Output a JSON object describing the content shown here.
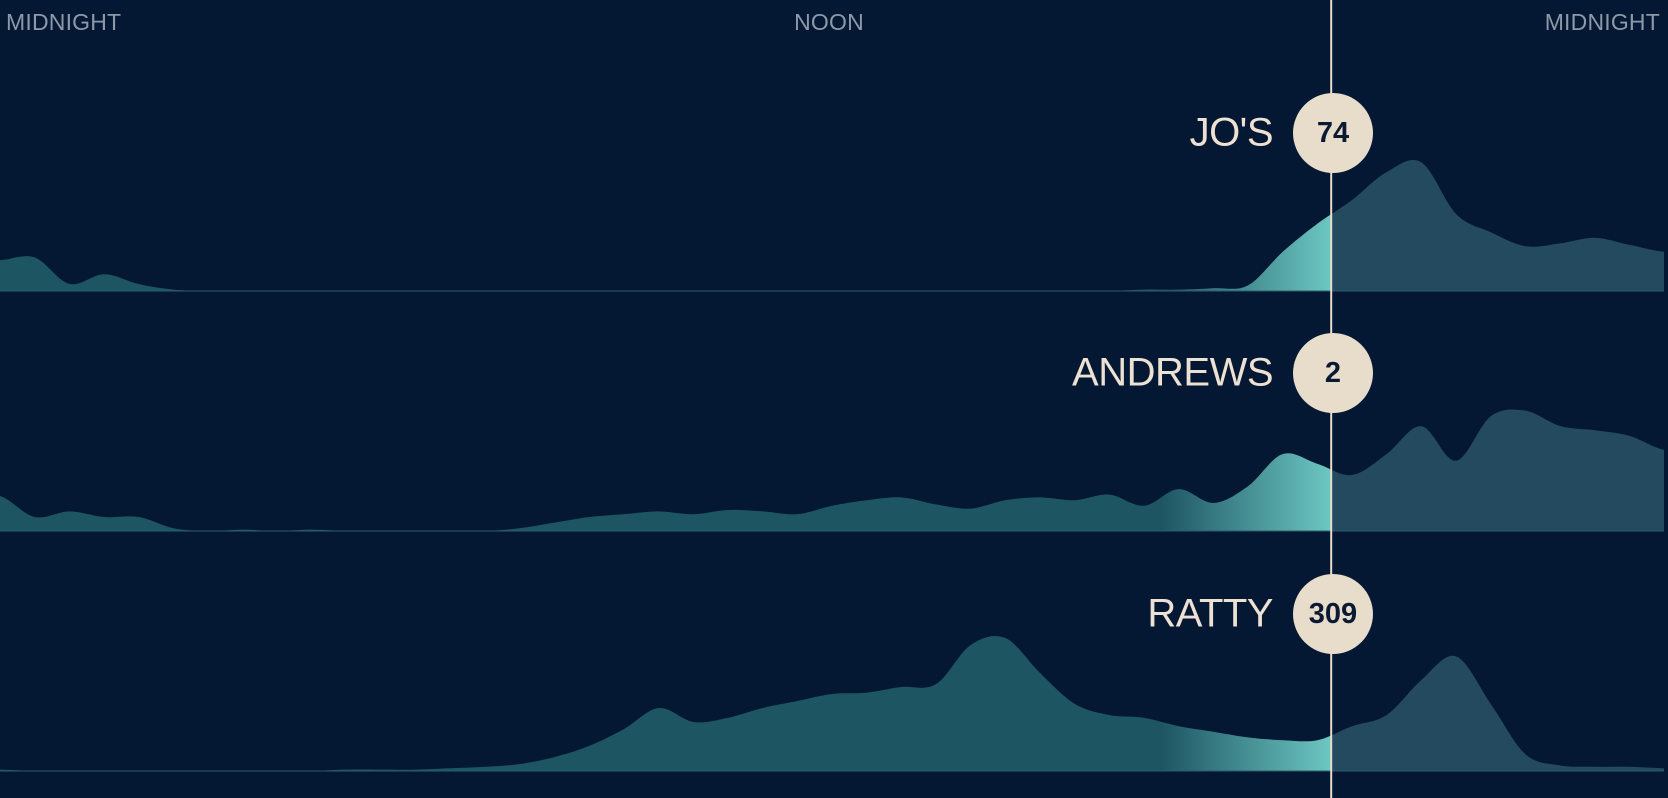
{
  "axis": {
    "left_label": "MIDNIGHT",
    "mid_label": "NOON",
    "right_label": "MIDNIGHT"
  },
  "colors": {
    "background": "#041733",
    "past_fill": "#1e5563",
    "past_highlight": "#6cc7c2",
    "future_fill": "#234a5e",
    "now_line": "#e8dccb",
    "badge": "#e8dccb"
  },
  "chart_data": {
    "type": "area",
    "x_unit": "hour of day",
    "x_range": [
      0,
      24
    ],
    "current_time_hour": 19.2,
    "x": [
      0,
      0.5,
      1,
      1.5,
      2,
      2.5,
      3,
      3.5,
      4,
      4.5,
      5,
      5.5,
      6,
      6.5,
      7,
      7.5,
      8,
      8.5,
      9,
      9.5,
      10,
      10.5,
      11,
      11.5,
      12,
      12.5,
      13,
      13.5,
      14,
      14.5,
      15,
      15.5,
      16,
      16.5,
      17,
      17.5,
      18,
      18.5,
      19,
      19.5,
      20,
      20.5,
      21,
      21.5,
      22,
      22.5,
      23,
      23.5,
      24
    ],
    "series": [
      {
        "name": "JO'S",
        "count": "74",
        "values": [
          0.22,
          0.24,
          0.05,
          0.12,
          0.05,
          0.01,
          0,
          0,
          0,
          0,
          0,
          0,
          0,
          0,
          0,
          0,
          0,
          0,
          0,
          0,
          0,
          0,
          0,
          0,
          0,
          0,
          0,
          0,
          0,
          0,
          0,
          0,
          0,
          0.01,
          0.01,
          0.02,
          0.04,
          0.28,
          0.48,
          0.65,
          0.85,
          0.92,
          0.55,
          0.42,
          0.32,
          0.34,
          0.38,
          0.33,
          0.28
        ]
      },
      {
        "name": "ANDREWS",
        "count": "2",
        "values": [
          0.25,
          0.1,
          0.14,
          0.1,
          0.1,
          0.02,
          0,
          0.01,
          0,
          0.01,
          0,
          0,
          0,
          0,
          0,
          0.02,
          0.06,
          0.1,
          0.12,
          0.14,
          0.12,
          0.15,
          0.14,
          0.12,
          0.18,
          0.22,
          0.24,
          0.19,
          0.16,
          0.22,
          0.24,
          0.22,
          0.26,
          0.18,
          0.3,
          0.2,
          0.32,
          0.55,
          0.48,
          0.4,
          0.55,
          0.75,
          0.5,
          0.82,
          0.86,
          0.75,
          0.72,
          0.68,
          0.58
        ]
      },
      {
        "name": "RATTY",
        "count": "309",
        "values": [
          0.01,
          0,
          0,
          0,
          0,
          0,
          0,
          0,
          0,
          0,
          0.01,
          0.01,
          0.01,
          0.02,
          0.03,
          0.05,
          0.1,
          0.18,
          0.3,
          0.45,
          0.35,
          0.38,
          0.45,
          0.5,
          0.55,
          0.56,
          0.6,
          0.62,
          0.9,
          0.95,
          0.7,
          0.48,
          0.4,
          0.38,
          0.32,
          0.28,
          0.24,
          0.22,
          0.22,
          0.32,
          0.4,
          0.65,
          0.82,
          0.48,
          0.12,
          0.04,
          0.03,
          0.03,
          0.02
        ]
      }
    ]
  }
}
